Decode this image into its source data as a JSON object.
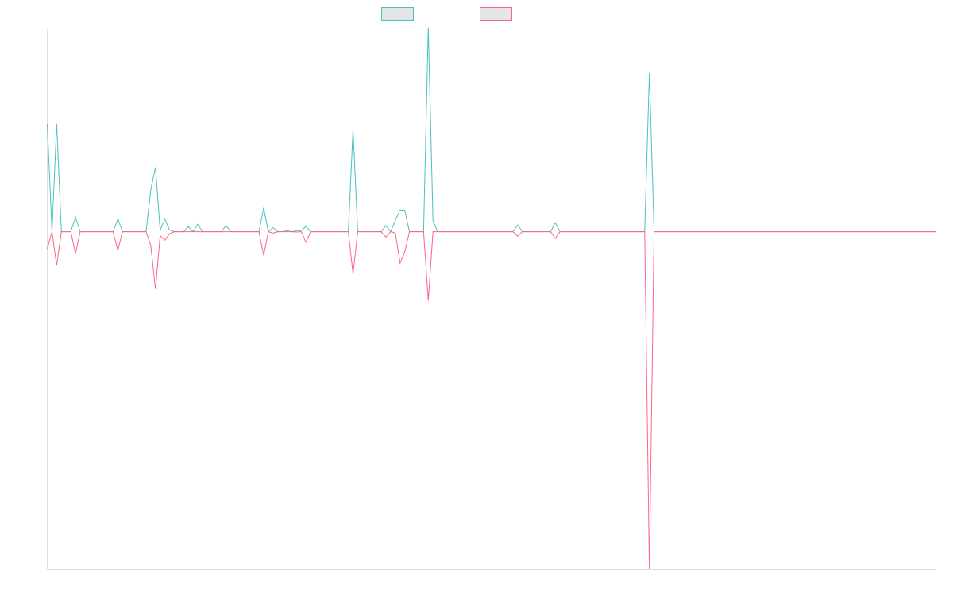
{
  "chart_data": {
    "type": "line",
    "title": "",
    "xlabel": "",
    "ylabel": "",
    "grid": false,
    "legend_position": "top",
    "n_points": 190,
    "ylim": [
      -1,
      0.6
    ],
    "series": [
      {
        "color": "#4bc0c0",
        "fill": "#e5e5e5",
        "peaks": [
          [
            0,
            0.32
          ],
          [
            2,
            0.32
          ],
          [
            6,
            0.044
          ],
          [
            15,
            0.038
          ],
          [
            22,
            0.124
          ],
          [
            23,
            0.191
          ],
          [
            24,
            0.005
          ],
          [
            25,
            0.038
          ],
          [
            26,
            0.005
          ],
          [
            30,
            0.015
          ],
          [
            32,
            0.022
          ],
          [
            38,
            0.018
          ],
          [
            46,
            0.071
          ],
          [
            48,
            0.012
          ],
          [
            51,
            0.003
          ],
          [
            53,
            0.003
          ],
          [
            54,
            0.003
          ],
          [
            55,
            0.016
          ],
          [
            65,
            0.303
          ],
          [
            72,
            0.018
          ],
          [
            74,
            0.035
          ],
          [
            75,
            0.064
          ],
          [
            76,
            0.064
          ],
          [
            81,
            0.605
          ],
          [
            82,
            0.033
          ],
          [
            100,
            0.02
          ],
          [
            108,
            0.027
          ],
          [
            128,
            0.47
          ]
        ]
      },
      {
        "color": "#ff6384",
        "fill": "#e5e5e5",
        "peaks": [
          [
            0,
            -0.05
          ],
          [
            2,
            -0.1
          ],
          [
            6,
            -0.065
          ],
          [
            15,
            -0.055
          ],
          [
            22,
            -0.04
          ],
          [
            23,
            -0.17
          ],
          [
            24,
            -0.012
          ],
          [
            25,
            -0.025
          ],
          [
            26,
            -0.006
          ],
          [
            46,
            -0.07
          ],
          [
            48,
            -0.004
          ],
          [
            53,
            -0.001
          ],
          [
            55,
            -0.031
          ],
          [
            65,
            -0.125
          ],
          [
            72,
            -0.016
          ],
          [
            74,
            -0.004
          ],
          [
            75,
            -0.093
          ],
          [
            76,
            -0.06
          ],
          [
            81,
            -0.204
          ],
          [
            100,
            -0.013
          ],
          [
            108,
            -0.02
          ],
          [
            128,
            -1.0
          ]
        ]
      }
    ]
  }
}
